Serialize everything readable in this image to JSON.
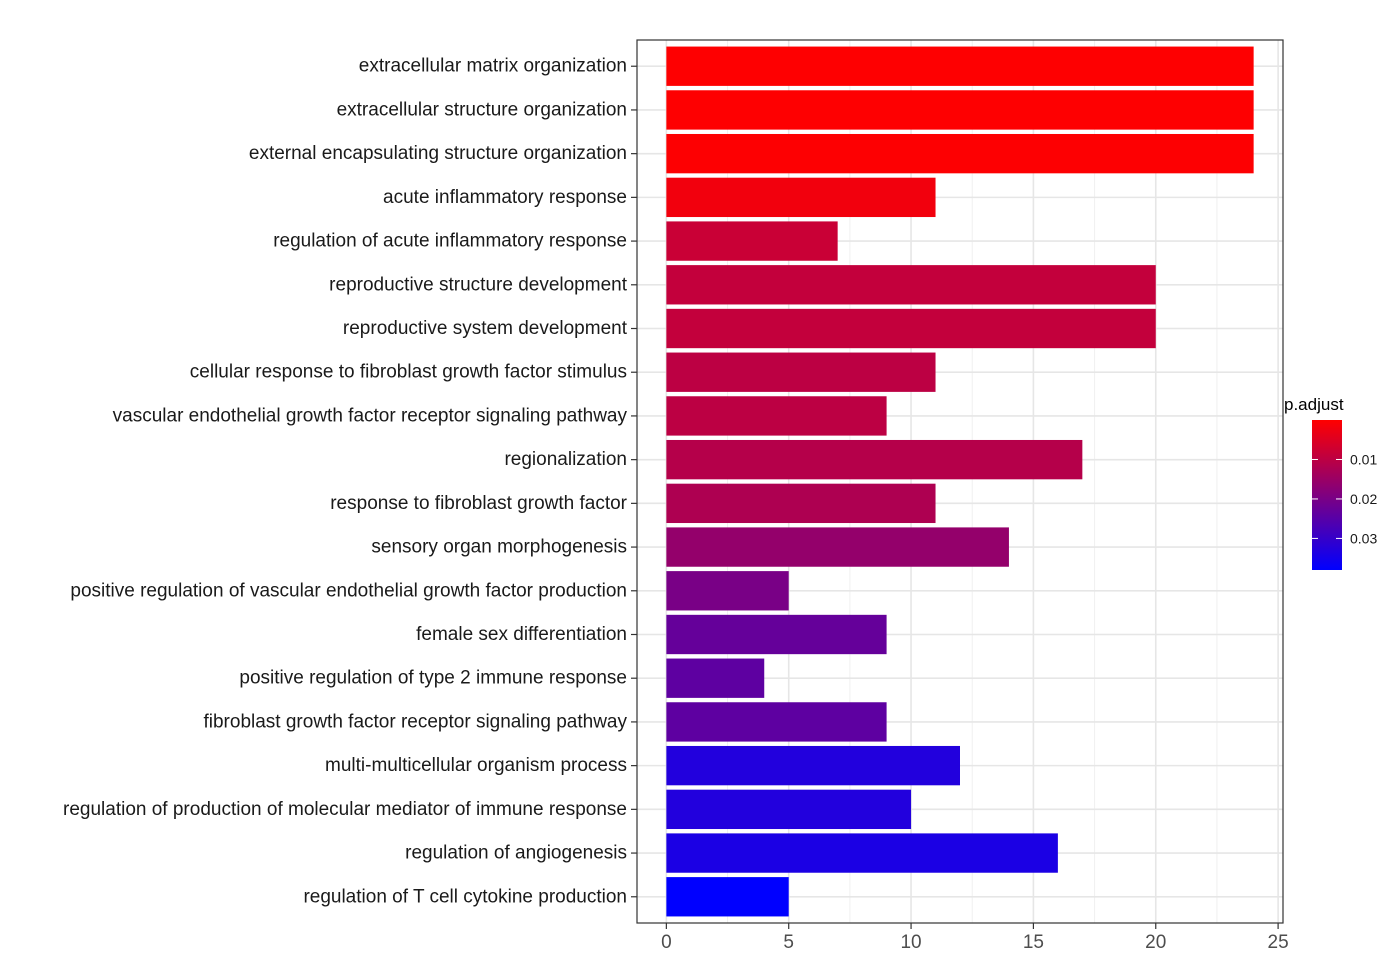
{
  "chart_data": {
    "type": "bar",
    "orientation": "horizontal",
    "categories": [
      "extracellular matrix organization",
      "extracellular structure organization",
      "external encapsulating structure organization",
      "acute inflammatory response",
      "regulation of acute inflammatory response",
      "reproductive structure development",
      "reproductive system development",
      "cellular response to fibroblast growth factor stimulus",
      "vascular endothelial growth factor receptor signaling pathway",
      "regionalization",
      "response to fibroblast growth factor",
      "sensory organ morphogenesis",
      "positive regulation of vascular endothelial growth factor production",
      "female sex differentiation",
      "positive regulation of type 2 immune response",
      "fibroblast growth factor receptor signaling pathway",
      "multi-multicellular organism process",
      "regulation of production of molecular mediator of immune response",
      "regulation of angiogenesis",
      "regulation of T cell cytokine production"
    ],
    "values": [
      24,
      24,
      24,
      11,
      7,
      20,
      20,
      11,
      9,
      17,
      11,
      14,
      5,
      9,
      4,
      9,
      12,
      10,
      16,
      5
    ],
    "p_adjust": [
      0.0001,
      0.0002,
      0.0003,
      0.002,
      0.008,
      0.009,
      0.009,
      0.01,
      0.01,
      0.011,
      0.012,
      0.016,
      0.02,
      0.023,
      0.024,
      0.024,
      0.033,
      0.033,
      0.034,
      0.038
    ],
    "xlim": [
      -1.2,
      25.2
    ],
    "xticks": [
      0,
      5,
      10,
      15,
      20,
      25
    ],
    "xlabel": "",
    "ylabel": "",
    "grid": true,
    "legend": {
      "title": "p.adjust",
      "placement": "right",
      "range": [
        0,
        0.038
      ],
      "ticks": [
        0.01,
        0.02,
        0.03
      ],
      "tick_labels": [
        "0.01",
        "0.02",
        "0.03"
      ],
      "color_low": "#FF0000",
      "color_high": "#0000FF"
    }
  }
}
